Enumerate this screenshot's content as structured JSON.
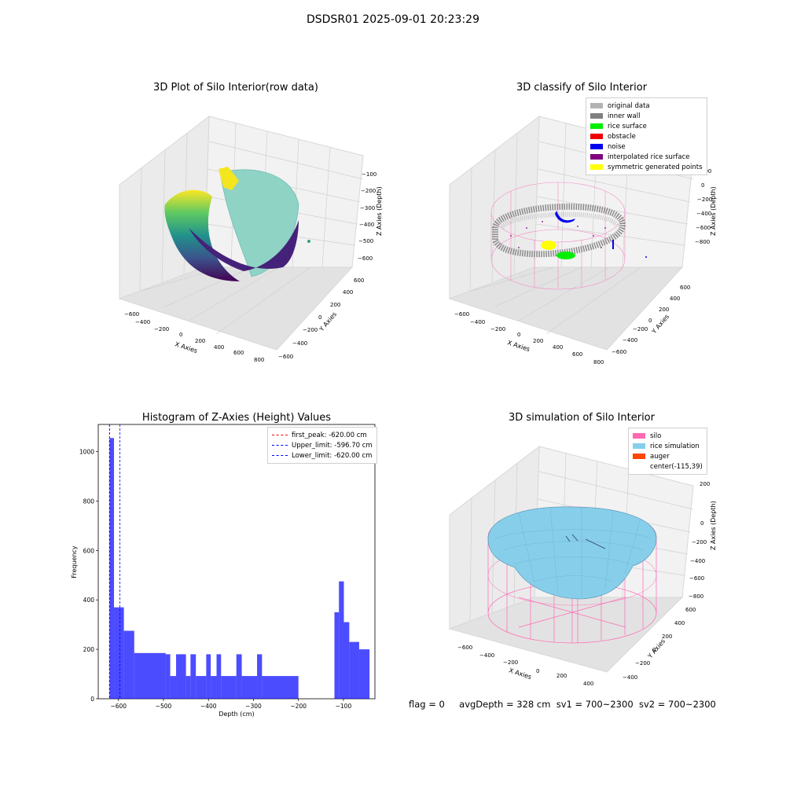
{
  "figure": {
    "title": "DSDSR01 2025-09-01 20:23:29"
  },
  "footer": {
    "flag": "flag = 0",
    "avg_depth": "avgDepth = 328 cm",
    "sv1": "sv1 = 700~2300",
    "sv2": "sv2 = 700~2300"
  },
  "plots": {
    "raw": {
      "title": "3D Plot of Silo Interior(row data)",
      "xlabel": "X Axies",
      "ylabel": "Y Axies",
      "zlabel": "Z Axies (Depth)",
      "xticks": [
        "−600",
        "−400",
        "−200",
        "0",
        "200",
        "400",
        "600",
        "800"
      ],
      "yticks": [
        "600",
        "400",
        "200",
        "0",
        "−200",
        "−400",
        "−600"
      ],
      "zticks": [
        "−100",
        "−200",
        "−300",
        "−400",
        "−500",
        "−600"
      ]
    },
    "classify": {
      "title": "3D classify of Silo Interior",
      "xlabel": "X Axies",
      "ylabel": "Y Axies",
      "zlabel": "Z Axies (Depth)",
      "xticks": [
        "−600",
        "−400",
        "−200",
        "0",
        "200",
        "400",
        "600",
        "800"
      ],
      "yticks": [
        "600",
        "400",
        "200",
        "0",
        "−200",
        "−400",
        "−600"
      ],
      "zticks": [
        "200",
        "0",
        "−200",
        "−400",
        "−600",
        "−800"
      ],
      "legend": [
        {
          "label": "original data",
          "color": "#b3b3b3"
        },
        {
          "label": "inner wall",
          "color": "#808080"
        },
        {
          "label": "rice surface",
          "color": "#00ee00"
        },
        {
          "label": "obstacle",
          "color": "#ee0000"
        },
        {
          "label": "noise",
          "color": "#0000ee"
        },
        {
          "label": "interpolated rice surface",
          "color": "#800080"
        },
        {
          "label": "symmetric generated points",
          "color": "#ffff00"
        }
      ]
    },
    "simulation": {
      "title": "3D simulation of Silo Interior",
      "xlabel": "X Axies",
      "ylabel": "Y Axies",
      "zlabel": "Z Axies (Depth)",
      "xticks": [
        "−600",
        "−400",
        "−200",
        "0",
        "200",
        "400"
      ],
      "yticks": [
        "600",
        "400",
        "200",
        "0",
        "−200",
        "−400"
      ],
      "zticks": [
        "200",
        "0",
        "−200",
        "−400",
        "−600",
        "−800"
      ],
      "legend": [
        {
          "label": "silo",
          "color": "#ff69b4"
        },
        {
          "label": "rice simulation",
          "color": "#87ceeb"
        },
        {
          "label": "auger",
          "color": "#ff4500"
        },
        {
          "label": "center(-115,39)",
          "color": "none"
        }
      ]
    }
  },
  "chart_data": {
    "type": "bar",
    "title": "Histogram of Z-Axies (Height) Values",
    "xlabel": "Depth (cm)",
    "ylabel": "Frequency",
    "xlim": [
      -645,
      -30
    ],
    "ylim": [
      0,
      1110
    ],
    "xticks": [
      -600,
      -500,
      -400,
      -300,
      -200,
      -100
    ],
    "xtick_labels": [
      "−600",
      "−500",
      "−400",
      "−300",
      "−200",
      "−100"
    ],
    "yticks": [
      0,
      200,
      400,
      600,
      800,
      1000
    ],
    "bar_color": "#0000ff",
    "bins": [
      {
        "x0": -620,
        "x1": -610,
        "value": 1055
      },
      {
        "x0": -610,
        "x1": -588,
        "value": 370
      },
      {
        "x0": -588,
        "x1": -565,
        "value": 275
      },
      {
        "x0": -565,
        "x1": -495,
        "value": 185
      },
      {
        "x0": -495,
        "x1": -485,
        "value": 180
      },
      {
        "x0": -485,
        "x1": -472,
        "value": 92
      },
      {
        "x0": -472,
        "x1": -450,
        "value": 180
      },
      {
        "x0": -450,
        "x1": -440,
        "value": 92
      },
      {
        "x0": -440,
        "x1": -428,
        "value": 180
      },
      {
        "x0": -428,
        "x1": -405,
        "value": 92
      },
      {
        "x0": -405,
        "x1": -395,
        "value": 180
      },
      {
        "x0": -395,
        "x1": -382,
        "value": 92
      },
      {
        "x0": -382,
        "x1": -372,
        "value": 180
      },
      {
        "x0": -372,
        "x1": -338,
        "value": 92
      },
      {
        "x0": -338,
        "x1": -326,
        "value": 180
      },
      {
        "x0": -326,
        "x1": -292,
        "value": 92
      },
      {
        "x0": -292,
        "x1": -281,
        "value": 180
      },
      {
        "x0": -281,
        "x1": -200,
        "value": 92
      },
      {
        "x0": -200,
        "x1": -120,
        "value": 0
      },
      {
        "x0": -120,
        "x1": -110,
        "value": 350
      },
      {
        "x0": -110,
        "x1": -99,
        "value": 475
      },
      {
        "x0": -99,
        "x1": -87,
        "value": 310
      },
      {
        "x0": -87,
        "x1": -65,
        "value": 230
      },
      {
        "x0": -65,
        "x1": -42,
        "value": 200
      }
    ],
    "lines": [
      {
        "label": "first_peak: -620.00 cm",
        "x": -620.0,
        "color": "#ff0000"
      },
      {
        "label": "Upper_limit: -596.70 cm",
        "x": -596.7,
        "color": "#0000ff"
      },
      {
        "label": "Lower_limit: -620.00 cm",
        "x": -620.0,
        "color": "#0000ff"
      }
    ]
  }
}
